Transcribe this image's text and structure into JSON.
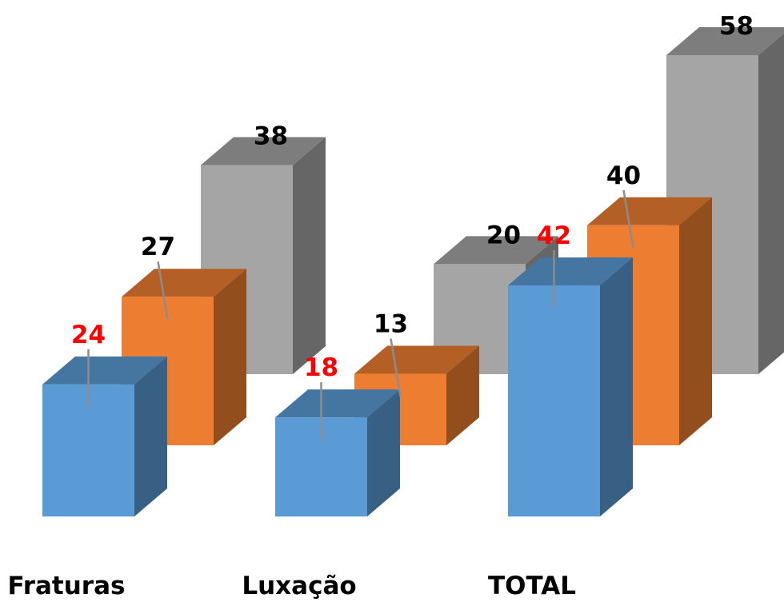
{
  "chart_data": {
    "type": "bar",
    "title": "",
    "xlabel": "",
    "ylabel": "",
    "ylim": [
      0,
      60
    ],
    "grid": false,
    "legend": "none",
    "categories": [
      "Fraturas",
      "Luxação",
      "TOTAL"
    ],
    "series": [
      {
        "values": [
          24,
          18,
          42
        ],
        "color": "#5b9bd5",
        "label_color": "#ff0000"
      },
      {
        "values": [
          27,
          13,
          40
        ],
        "color": "#ed7d31",
        "label_color": "#000000"
      },
      {
        "values": [
          38,
          20,
          58
        ],
        "color": "#a5a5a5",
        "label_color": "#000000"
      }
    ]
  }
}
